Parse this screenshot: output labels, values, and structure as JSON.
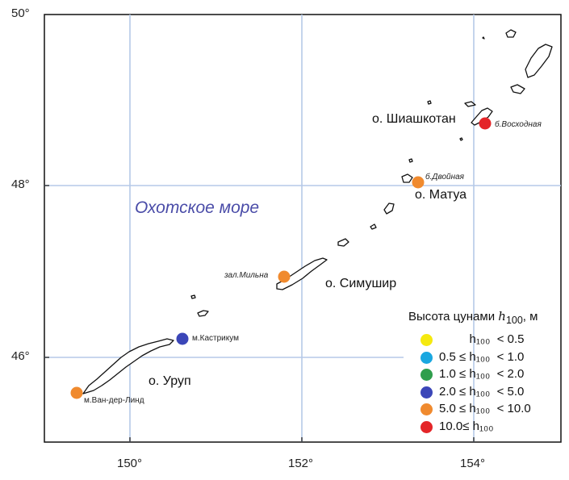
{
  "map": {
    "lat_ticks": [
      "50°",
      "48°",
      "46°"
    ],
    "lon_ticks": [
      "150°",
      "152°",
      "154°"
    ],
    "sea_label": "Охотское море",
    "islands": [
      {
        "key": "shiashkotan",
        "label": "о. Шиашкотан"
      },
      {
        "key": "matua",
        "label": "о. Матуа"
      },
      {
        "key": "simushir",
        "label": "о. Симушир"
      },
      {
        "key": "urup",
        "label": "о. Уруп"
      }
    ],
    "sites": [
      {
        "key": "voskhodnaya",
        "label": "б.Восходная",
        "lon": 154.12,
        "lat": 48.72,
        "class": "10+"
      },
      {
        "key": "dvoynaya",
        "label": "б.Двойная",
        "lon": 153.38,
        "lat": 48.04,
        "class": "5-10"
      },
      {
        "key": "milna",
        "label": "зал.Мильна",
        "lon": 151.81,
        "lat": 46.94,
        "class": "5-10"
      },
      {
        "key": "kastrikum",
        "label": "м.Кастрикум",
        "lon": 150.62,
        "lat": 46.23,
        "class": "2-5"
      },
      {
        "key": "van-der-lind",
        "label": "м.Ван-дер-Линд",
        "lon": 149.38,
        "lat": 45.58,
        "class": "5-10"
      }
    ]
  },
  "legend": {
    "title_prefix": "Высота цунами ",
    "title_var": "h",
    "title_sub": "100",
    "title_suffix": ", м",
    "items": [
      {
        "text": "         h₁₀₀  < 0.5",
        "color": "#f5e90f"
      },
      {
        "text": "0.5 ≤ h₁₀₀  < 1.0",
        "color": "#19a7e0"
      },
      {
        "text": "1.0 ≤ h₁₀₀  < 2.0",
        "color": "#2f9e4c"
      },
      {
        "text": "2.0 ≤ h₁₀₀  < 5.0",
        "color": "#3b46b8"
      },
      {
        "text": "5.0 ≤ h₁₀₀  < 10.0",
        "color": "#f08a2e"
      },
      {
        "text": "10.0≤ h₁₀₀",
        "color": "#e42528"
      }
    ]
  },
  "colors": {
    "grid": "#b5c9e8",
    "coast": "#111111",
    "sea_label": "#4a4ca8"
  }
}
